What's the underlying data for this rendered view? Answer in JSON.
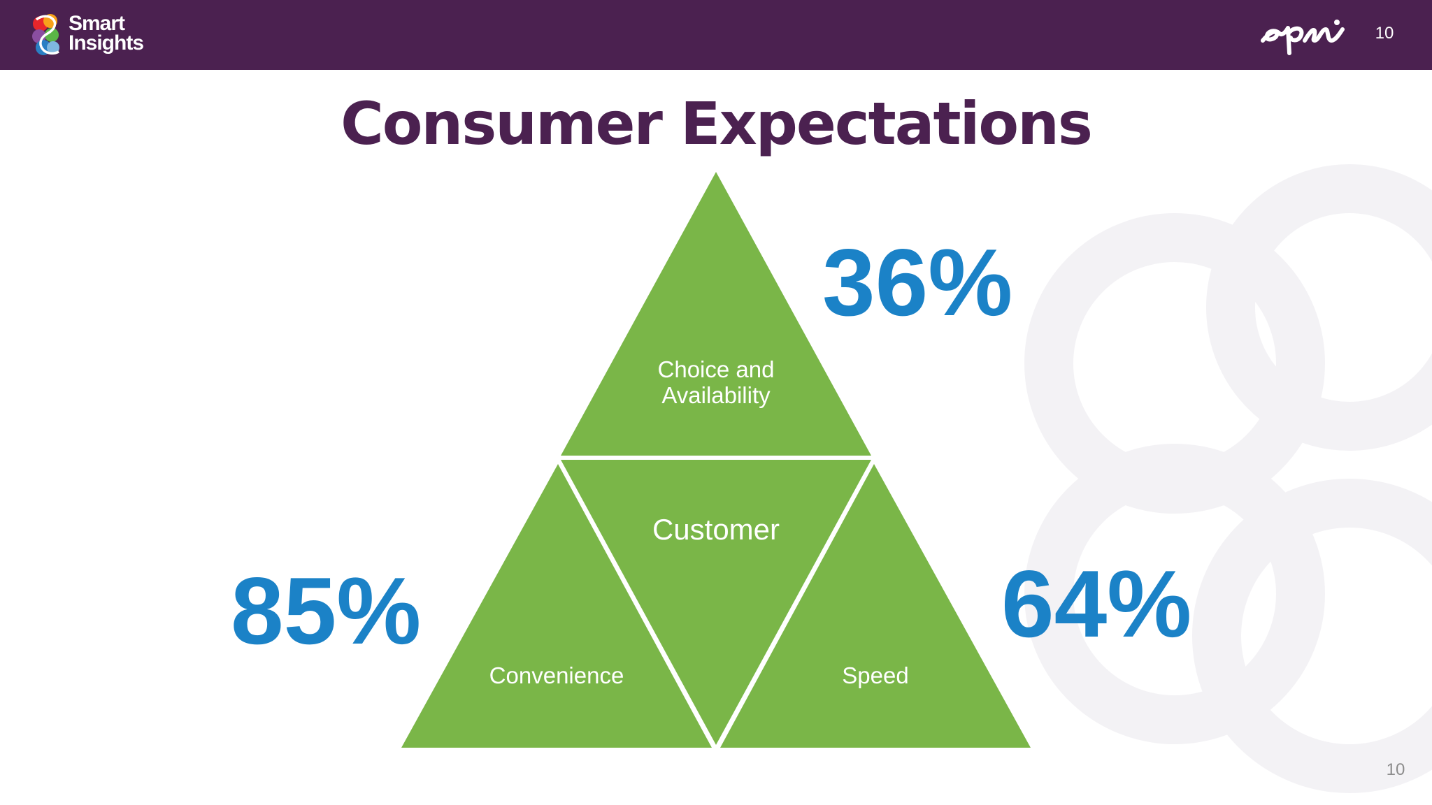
{
  "header": {
    "brand": {
      "line1": "Smart",
      "line2": "Insights",
      "icon": "smart-insights-logo"
    },
    "partner_logo": "episerver-logo",
    "page_number": "10",
    "background_color": "#4b2150"
  },
  "slide": {
    "title": "Consumer Expectations",
    "center_label": "Customer",
    "segments": {
      "top": {
        "label_line1": "Choice and",
        "label_line2": "Availability",
        "percentage": "36%"
      },
      "left": {
        "label": "Convenience",
        "percentage": "85%"
      },
      "right": {
        "label": "Speed",
        "percentage": "64%"
      }
    },
    "colors": {
      "triangle": "#7ab648",
      "percentage": "#1b82c7",
      "title": "#4b2150"
    }
  },
  "footer": {
    "page_number": "10"
  }
}
